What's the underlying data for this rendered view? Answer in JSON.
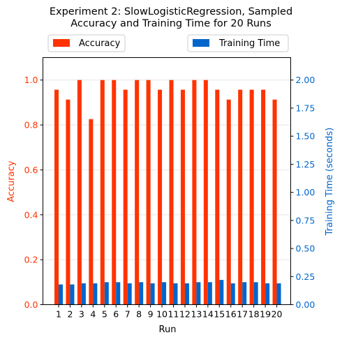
{
  "chart_data": {
    "type": "bar",
    "title_line1": "Experiment 2: SlowLogisticRegression, Sampled",
    "title_line2": "Accuracy and Training Time for 20 Runs",
    "xlabel": "Run",
    "ylabel_left": "Accuracy",
    "ylabel_right": "Training Time (seconds)",
    "categories": [
      "1",
      "2",
      "3",
      "4",
      "5",
      "6",
      "7",
      "8",
      "9",
      "10",
      "11",
      "12",
      "13",
      "14",
      "15",
      "16",
      "17",
      "18",
      "19",
      "20"
    ],
    "ylim_left": [
      0,
      1.1
    ],
    "ylim_right": [
      0,
      2.2
    ],
    "yticks_left": [
      "0.0",
      "0.2",
      "0.4",
      "0.6",
      "0.8",
      "1.0"
    ],
    "yticks_right": [
      "0.00",
      "0.25",
      "0.50",
      "0.75",
      "1.00",
      "1.25",
      "1.50",
      "1.75",
      "2.00"
    ],
    "grid": "horizontal",
    "legend_placement": "top",
    "series": [
      {
        "name": "Accuracy",
        "axis": "left",
        "color": "#ff3300",
        "values": [
          0.957,
          0.913,
          1.0,
          0.826,
          1.0,
          1.0,
          0.957,
          1.0,
          1.0,
          0.957,
          1.0,
          0.957,
          1.0,
          1.0,
          0.957,
          0.913,
          0.957,
          0.957,
          0.957,
          0.913
        ]
      },
      {
        "name": "Training Time",
        "axis": "right",
        "color": "#0066cc",
        "values": [
          0.18,
          0.18,
          0.19,
          0.19,
          0.2,
          0.2,
          0.19,
          0.2,
          0.19,
          0.2,
          0.19,
          0.19,
          0.2,
          0.2,
          0.22,
          0.19,
          0.2,
          0.2,
          0.19,
          0.19
        ]
      }
    ]
  }
}
